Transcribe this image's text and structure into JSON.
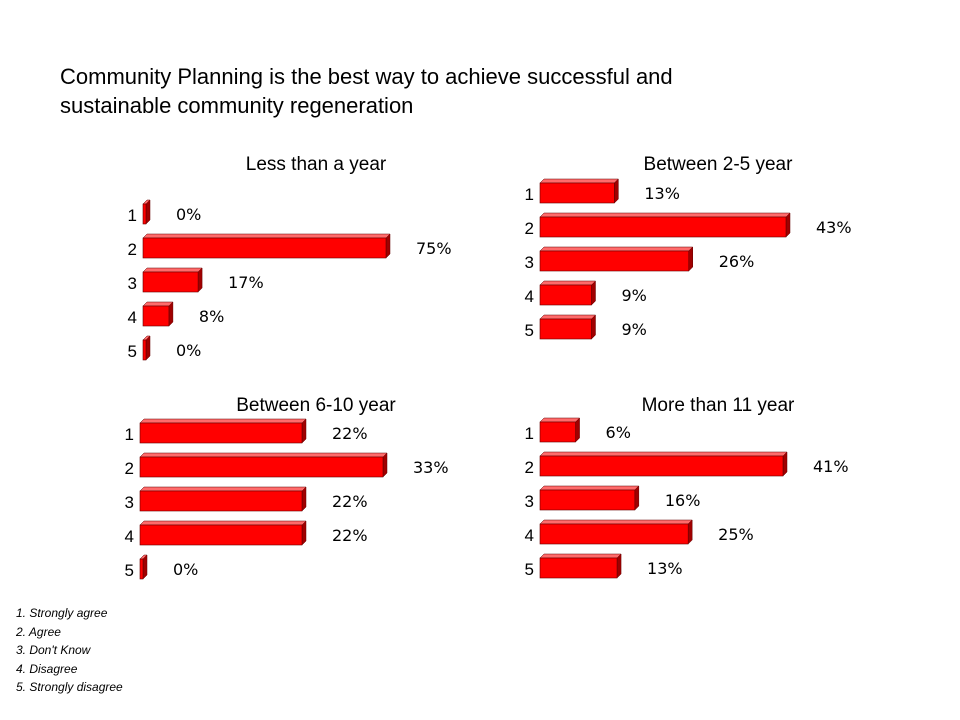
{
  "title": {
    "line1": "Community Planning is the best way to achieve successful and",
    "line2": "sustainable community regeneration"
  },
  "legend": [
    "1. Strongly agree",
    "2. Agree",
    "3. Don't Know",
    "4. Disagree",
    "5. Strongly disagree"
  ],
  "colors": {
    "bar_front": "#ff0000",
    "bar_top": "#ff6b6b",
    "bar_side": "#a00000"
  },
  "chart_data": [
    {
      "type": "bar",
      "orientation": "horizontal",
      "title": "Less than a year",
      "categories": [
        "1",
        "2",
        "3",
        "4",
        "5"
      ],
      "values": [
        0,
        75,
        17,
        8,
        0
      ],
      "value_labels": [
        "0%",
        "75%",
        "17%",
        "8%",
        "0%"
      ],
      "xlim": [
        0,
        75
      ]
    },
    {
      "type": "bar",
      "orientation": "horizontal",
      "title": "Between 2-5 year",
      "categories": [
        "1",
        "2",
        "3",
        "4",
        "5"
      ],
      "values": [
        13,
        43,
        26,
        9,
        9
      ],
      "value_labels": [
        "13%",
        "43%",
        "26%",
        "9%",
        "9%"
      ],
      "xlim": [
        0,
        43
      ]
    },
    {
      "type": "bar",
      "orientation": "horizontal",
      "title": "Between 6-10 year",
      "categories": [
        "1",
        "2",
        "3",
        "4",
        "5"
      ],
      "values": [
        22,
        33,
        22,
        22,
        0
      ],
      "value_labels": [
        "22%",
        "33%",
        "22%",
        "22%",
        "0%"
      ],
      "xlim": [
        0,
        33
      ]
    },
    {
      "type": "bar",
      "orientation": "horizontal",
      "title": "More than 11 year",
      "categories": [
        "1",
        "2",
        "3",
        "4",
        "5"
      ],
      "values": [
        6,
        41,
        16,
        25,
        13
      ],
      "value_labels": [
        "6%",
        "41%",
        "16%",
        "25%",
        "13%"
      ],
      "xlim": [
        0,
        41
      ]
    }
  ]
}
